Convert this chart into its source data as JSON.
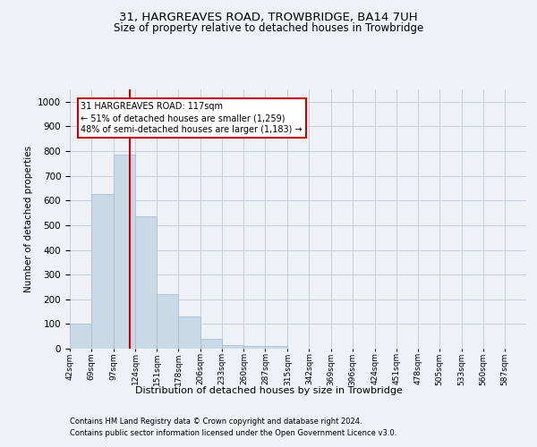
{
  "title1": "31, HARGREAVES ROAD, TROWBRIDGE, BA14 7UH",
  "title2": "Size of property relative to detached houses in Trowbridge",
  "xlabel": "Distribution of detached houses by size in Trowbridge",
  "ylabel": "Number of detached properties",
  "bin_labels": [
    "42sqm",
    "69sqm",
    "97sqm",
    "124sqm",
    "151sqm",
    "178sqm",
    "206sqm",
    "233sqm",
    "260sqm",
    "287sqm",
    "315sqm",
    "342sqm",
    "369sqm",
    "396sqm",
    "424sqm",
    "451sqm",
    "478sqm",
    "505sqm",
    "533sqm",
    "560sqm",
    "587sqm"
  ],
  "bin_edges": [
    42,
    69,
    97,
    124,
    151,
    178,
    206,
    233,
    260,
    287,
    315,
    342,
    369,
    396,
    424,
    451,
    478,
    505,
    533,
    560,
    587,
    614
  ],
  "bar_heights": [
    100,
    625,
    785,
    535,
    220,
    130,
    40,
    15,
    10,
    10,
    0,
    0,
    0,
    0,
    0,
    0,
    0,
    0,
    0,
    0,
    0
  ],
  "bar_color": "#c9d9e8",
  "bar_edge_color": "#a8bfd0",
  "property_size": 117,
  "vline_color": "#cc0000",
  "annotation_text": "31 HARGREAVES ROAD: 117sqm\n← 51% of detached houses are smaller (1,259)\n48% of semi-detached houses are larger (1,183) →",
  "annotation_box_color": "#ffffff",
  "annotation_box_edge": "#cc0000",
  "ylim": [
    0,
    1050
  ],
  "yticks": [
    0,
    100,
    200,
    300,
    400,
    500,
    600,
    700,
    800,
    900,
    1000
  ],
  "footer1": "Contains HM Land Registry data © Crown copyright and database right 2024.",
  "footer2": "Contains public sector information licensed under the Open Government Licence v3.0.",
  "bg_color": "#eef2f7",
  "plot_bg_color": "#eef2f7",
  "grid_color": "#c0c8d8"
}
